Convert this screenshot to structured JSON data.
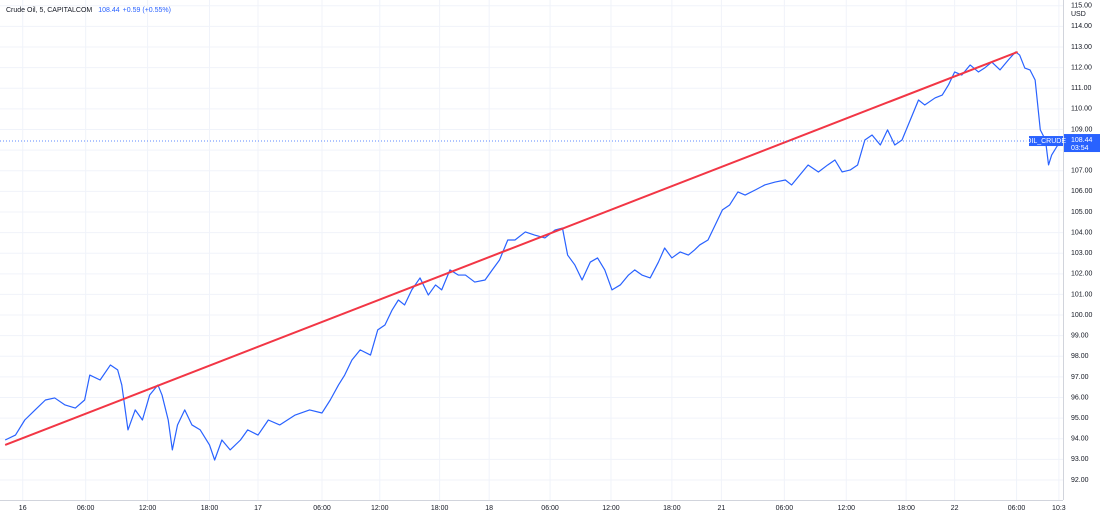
{
  "chart_data": {
    "type": "line",
    "title": "Crude Oil, 5, CAPITALCOM",
    "last_price": 108.44,
    "change": {
      "value": 0.59,
      "label": "+0.59"
    },
    "change_percent": {
      "value": 0.55,
      "label": "(+0.55%)"
    },
    "symbol_label": "OIL_CRUDE",
    "countdown": "03:54",
    "currency": "USD",
    "color": "#2962ff",
    "grid": true,
    "x": [
      0.5,
      1.5,
      2.4,
      3.4,
      4.4,
      5.3,
      6.3,
      7.3,
      8.2,
      8.7,
      9.7,
      10.7,
      11.4,
      11.8,
      12.4,
      13.1,
      13.8,
      14.5,
      15.3,
      15.7,
      16.3,
      16.7,
      17.2,
      17.9,
      18.6,
      19.4,
      20.3,
      20.8,
      21.5,
      22.3,
      23.3,
      24.0,
      25.0,
      26.0,
      27.1,
      28.6,
      30.0,
      31.2,
      32.0,
      32.8,
      33.4,
      34.1,
      34.9,
      35.9,
      36.6,
      37.3,
      38.0,
      38.6,
      39.2,
      39.9,
      40.7,
      41.5,
      42.2,
      42.8,
      43.6,
      44.4,
      45.1,
      46.0,
      47.0,
      47.7,
      48.4,
      49.2,
      49.9,
      50.9,
      51.8,
      52.8,
      53.8,
      54.5,
      55.0,
      55.7,
      56.4,
      57.2,
      57.9,
      58.6,
      59.3,
      60.1,
      60.9,
      61.5,
      62.2,
      63.0,
      63.8,
      64.4,
      65.1,
      65.9,
      66.7,
      67.3,
      67.8,
      68.6,
      69.3,
      70.0,
      70.7,
      71.5,
      72.2,
      73.2,
      74.1,
      75.1,
      76.1,
      76.7,
      77.5,
      78.3,
      79.3,
      80.2,
      80.9,
      81.6,
      82.4,
      83.1,
      83.8,
      84.5,
      85.3,
      86.0,
      86.7,
      87.4,
      88.2,
      89.0,
      89.6,
      90.6,
      91.3,
      91.9,
      92.5,
      93.2,
      94.0,
      94.8,
      95.4,
      96.1,
      96.9,
      97.7,
      98.4,
      98.8,
      99.3,
      99.8,
      100.3,
      100.8,
      101.3,
      101.6,
      101.9,
      102.5,
      102.9
    ],
    "values": [
      93.94,
      94.18,
      94.91,
      95.4,
      95.88,
      95.98,
      95.64,
      95.49,
      95.88,
      97.09,
      96.85,
      97.58,
      97.34,
      96.61,
      94.43,
      95.4,
      94.91,
      96.12,
      96.61,
      96.12,
      94.91,
      93.46,
      94.67,
      95.4,
      94.67,
      94.43,
      93.7,
      92.97,
      93.94,
      93.46,
      93.94,
      94.43,
      94.18,
      94.91,
      94.67,
      95.15,
      95.4,
      95.25,
      95.88,
      96.61,
      97.09,
      97.82,
      98.31,
      98.06,
      99.28,
      99.52,
      100.25,
      100.73,
      100.49,
      101.22,
      101.8,
      100.97,
      101.46,
      101.22,
      102.19,
      101.94,
      101.94,
      101.6,
      101.7,
      102.19,
      102.67,
      103.64,
      103.64,
      104.03,
      103.88,
      103.74,
      104.13,
      104.22,
      102.91,
      102.43,
      101.7,
      102.57,
      102.77,
      102.19,
      101.22,
      101.46,
      101.94,
      102.19,
      101.94,
      101.8,
      102.57,
      103.25,
      102.77,
      103.06,
      102.91,
      103.16,
      103.4,
      103.64,
      104.37,
      105.1,
      105.34,
      105.97,
      105.82,
      106.07,
      106.31,
      106.45,
      106.55,
      106.31,
      106.79,
      107.28,
      106.94,
      107.28,
      107.52,
      106.94,
      107.04,
      107.28,
      108.49,
      108.73,
      108.25,
      108.98,
      108.25,
      108.49,
      109.46,
      110.43,
      110.19,
      110.53,
      110.67,
      111.16,
      111.79,
      111.64,
      112.13,
      111.79,
      111.98,
      112.27,
      111.89,
      112.37,
      112.76,
      112.61,
      111.98,
      111.89,
      111.4,
      108.98,
      108.49,
      107.28,
      107.76,
      108.25,
      108.44
    ],
    "trendline": {
      "x": [
        0.5,
        98.6
      ],
      "values": [
        93.7,
        112.76
      ],
      "color": "#f23645"
    },
    "xlim": [
      0,
      103
    ],
    "ylim": [
      91.03,
      115.28
    ],
    "xticks": [
      {
        "value": 2.2,
        "label": "16"
      },
      {
        "value": 8.3,
        "label": "06:00"
      },
      {
        "value": 14.3,
        "label": "12:00"
      },
      {
        "value": 20.3,
        "label": "18:00"
      },
      {
        "value": 25.0,
        "label": "17"
      },
      {
        "value": 31.2,
        "label": "06:00"
      },
      {
        "value": 36.8,
        "label": "12:00"
      },
      {
        "value": 42.6,
        "label": "18:00"
      },
      {
        "value": 47.4,
        "label": "18"
      },
      {
        "value": 53.3,
        "label": "06:00"
      },
      {
        "value": 59.2,
        "label": "12:00"
      },
      {
        "value": 65.1,
        "label": "18:00"
      },
      {
        "value": 69.9,
        "label": "21"
      },
      {
        "value": 76.0,
        "label": "06:00"
      },
      {
        "value": 82.0,
        "label": "12:00"
      },
      {
        "value": 87.8,
        "label": "18:00"
      },
      {
        "value": 92.5,
        "label": "22"
      },
      {
        "value": 98.5,
        "label": "06:00"
      },
      {
        "value": 102.6,
        "label": "10:3"
      }
    ],
    "yticks": [
      {
        "value": 92,
        "label": "92.00"
      },
      {
        "value": 93,
        "label": "93.00"
      },
      {
        "value": 94,
        "label": "94.00"
      },
      {
        "value": 95,
        "label": "95.00"
      },
      {
        "value": 96,
        "label": "96.00"
      },
      {
        "value": 97,
        "label": "97.00"
      },
      {
        "value": 98,
        "label": "98.00"
      },
      {
        "value": 99,
        "label": "99.00"
      },
      {
        "value": 100,
        "label": "100.00"
      },
      {
        "value": 101,
        "label": "101.00"
      },
      {
        "value": 102,
        "label": "102.00"
      },
      {
        "value": 103,
        "label": "103.00"
      },
      {
        "value": 104,
        "label": "104.00"
      },
      {
        "value": 105,
        "label": "105.00"
      },
      {
        "value": 106,
        "label": "106.00"
      },
      {
        "value": 107,
        "label": "107.00"
      },
      {
        "value": 108,
        "label": "108.00"
      },
      {
        "value": 109,
        "label": "109.00"
      },
      {
        "value": 110,
        "label": "110.00"
      },
      {
        "value": 111,
        "label": "111.00"
      },
      {
        "value": 112,
        "label": "112.00"
      },
      {
        "value": 113,
        "label": "113.00"
      },
      {
        "value": 114,
        "label": "114.00"
      },
      {
        "value": 115,
        "label": "115.00"
      }
    ]
  }
}
